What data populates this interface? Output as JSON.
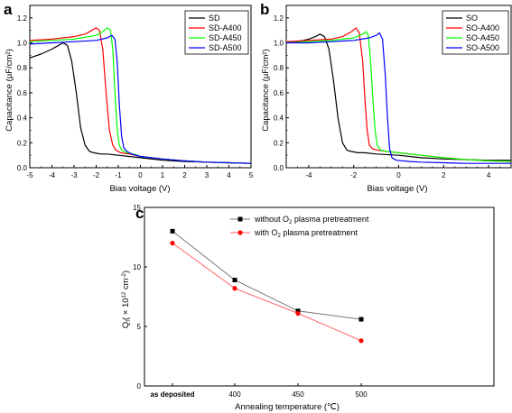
{
  "chart_data": [
    {
      "panel": "a",
      "type": "line",
      "xlabel": "Bias voltage (V)",
      "ylabel": "Capacitance (μF/cm²)",
      "xlim": [
        -5,
        5
      ],
      "ylim": [
        0,
        1.3
      ],
      "xticks": [
        "-5",
        "-4",
        "-3",
        "-2",
        "-1",
        "0",
        "1",
        "2",
        "3",
        "4",
        "5"
      ],
      "yticks": [
        "0.0",
        "0.2",
        "0.4",
        "0.6",
        "0.8",
        "1.0",
        "1.2"
      ],
      "legend_position": "top-right",
      "series": [
        {
          "name": "SD",
          "color": "#000000",
          "x": [
            -5,
            -4.5,
            -4,
            -3.7,
            -3.5,
            -3.3,
            -3.1,
            -2.9,
            -2.7,
            -2.5,
            -2.3,
            -2.1,
            -1.8,
            -1.5,
            -1,
            0,
            1,
            2,
            3,
            4,
            5
          ],
          "y": [
            0.88,
            0.91,
            0.95,
            0.98,
            1.0,
            0.98,
            0.85,
            0.6,
            0.32,
            0.18,
            0.13,
            0.12,
            0.11,
            0.11,
            0.1,
            0.08,
            0.06,
            0.05,
            0.045,
            0.04,
            0.035
          ]
        },
        {
          "name": "SD-A400",
          "color": "#ff0000",
          "x": [
            -5,
            -4,
            -3,
            -2.5,
            -2.2,
            -2.0,
            -1.85,
            -1.7,
            -1.55,
            -1.4,
            -1.25,
            -1.1,
            -0.9,
            -0.5,
            0,
            1,
            2,
            3,
            4,
            5
          ],
          "y": [
            1.02,
            1.03,
            1.05,
            1.07,
            1.1,
            1.12,
            1.1,
            0.95,
            0.6,
            0.3,
            0.18,
            0.14,
            0.12,
            0.11,
            0.09,
            0.07,
            0.055,
            0.045,
            0.04,
            0.035
          ]
        },
        {
          "name": "SD-A450",
          "color": "#00ff00",
          "x": [
            -5,
            -4,
            -3,
            -2,
            -1.7,
            -1.5,
            -1.35,
            -1.25,
            -1.15,
            -1.05,
            -0.95,
            -0.85,
            -0.6,
            -0.3,
            0,
            1,
            2,
            3,
            4,
            5
          ],
          "y": [
            1.01,
            1.02,
            1.03,
            1.06,
            1.09,
            1.12,
            1.1,
            0.95,
            0.6,
            0.3,
            0.18,
            0.14,
            0.12,
            0.11,
            0.09,
            0.07,
            0.055,
            0.045,
            0.04,
            0.035
          ]
        },
        {
          "name": "SD-A500",
          "color": "#0000ff",
          "x": [
            -5,
            -4,
            -3,
            -2,
            -1.5,
            -1.3,
            -1.15,
            -1.05,
            -0.95,
            -0.85,
            -0.75,
            -0.6,
            -0.4,
            0,
            1,
            2,
            3,
            4,
            5
          ],
          "y": [
            0.99,
            1.0,
            1.01,
            1.02,
            1.04,
            1.06,
            1.03,
            0.85,
            0.5,
            0.25,
            0.16,
            0.13,
            0.11,
            0.09,
            0.07,
            0.055,
            0.045,
            0.04,
            0.035
          ]
        }
      ]
    },
    {
      "panel": "b",
      "type": "line",
      "xlabel": "Bias voltage (V)",
      "ylabel": "Capacitance (μF/cm²)",
      "xlim": [
        -5,
        5
      ],
      "ylim": [
        0,
        1.3
      ],
      "xticks": [
        "-4",
        "-2",
        "0",
        "2",
        "4"
      ],
      "yticks": [
        "0.0",
        "0.2",
        "0.4",
        "0.6",
        "0.8",
        "1.0",
        "1.2"
      ],
      "legend_position": "top-right",
      "series": [
        {
          "name": "SO",
          "color": "#000000",
          "x": [
            -5,
            -4.5,
            -4,
            -3.7,
            -3.5,
            -3.3,
            -3.1,
            -2.9,
            -2.7,
            -2.5,
            -2.3,
            -2.1,
            -1.8,
            -1.5,
            -1,
            0,
            1,
            2,
            3,
            4,
            5
          ],
          "y": [
            1.0,
            1.01,
            1.03,
            1.05,
            1.07,
            1.05,
            0.95,
            0.7,
            0.4,
            0.2,
            0.14,
            0.13,
            0.12,
            0.12,
            0.11,
            0.1,
            0.08,
            0.07,
            0.065,
            0.06,
            0.06
          ]
        },
        {
          "name": "SO-A400",
          "color": "#ff0000",
          "x": [
            -5,
            -4,
            -3,
            -2.5,
            -2.1,
            -1.9,
            -1.75,
            -1.6,
            -1.5,
            -1.4,
            -1.3,
            -1.15,
            -0.9,
            -0.5,
            0,
            1,
            2,
            3,
            4,
            5
          ],
          "y": [
            1.01,
            1.02,
            1.03,
            1.05,
            1.09,
            1.12,
            1.08,
            0.85,
            0.55,
            0.3,
            0.18,
            0.15,
            0.14,
            0.13,
            0.12,
            0.1,
            0.08,
            0.065,
            0.055,
            0.05
          ]
        },
        {
          "name": "SO-A450",
          "color": "#00ff00",
          "x": [
            -5,
            -4,
            -3,
            -2,
            -1.6,
            -1.45,
            -1.35,
            -1.25,
            -1.15,
            -1.05,
            -0.95,
            -0.8,
            -0.5,
            0,
            1,
            2,
            3,
            4,
            5
          ],
          "y": [
            1.0,
            1.01,
            1.02,
            1.04,
            1.07,
            1.09,
            1.06,
            0.85,
            0.55,
            0.3,
            0.18,
            0.14,
            0.13,
            0.12,
            0.1,
            0.08,
            0.065,
            0.055,
            0.05
          ]
        },
        {
          "name": "SO-A500",
          "color": "#0000ff",
          "x": [
            -5,
            -4,
            -3,
            -2,
            -1.3,
            -1.0,
            -0.85,
            -0.72,
            -0.6,
            -0.5,
            -0.4,
            -0.3,
            -0.1,
            0.5,
            1,
            2,
            3,
            4,
            5
          ],
          "y": [
            1.0,
            1.0,
            1.01,
            1.02,
            1.04,
            1.06,
            1.08,
            1.03,
            0.75,
            0.4,
            0.15,
            0.08,
            0.06,
            0.05,
            0.045,
            0.04,
            0.035,
            0.035,
            0.035
          ]
        }
      ]
    },
    {
      "panel": "c",
      "type": "line",
      "xlabel": "Annealing temperature (℃)",
      "ylabel_main": "Q",
      "ylabel_sub": "f",
      "ylabel_open": "( × 10",
      "ylabel_sup1": "12",
      "ylabel_unit": " cm",
      "ylabel_sup2": "-2",
      "ylabel_close": ")",
      "categories": [
        "as deposited",
        "400",
        "450",
        "500"
      ],
      "ylim": [
        0,
        15
      ],
      "yticks": [
        "0",
        "5",
        "10",
        "15"
      ],
      "legend_position": "top-right",
      "series": [
        {
          "name_pre": "without O",
          "name_sub": "2",
          "name_post": " plasma pretreatment",
          "color": "#000000",
          "marker": "square",
          "values": [
            13.0,
            8.9,
            6.3,
            5.6
          ]
        },
        {
          "name_pre": "with O",
          "name_sub": "2",
          "name_post": " plasma pretreatment",
          "color": "#ff0000",
          "marker": "circle",
          "values": [
            12.0,
            8.2,
            6.1,
            3.8
          ]
        }
      ]
    }
  ]
}
